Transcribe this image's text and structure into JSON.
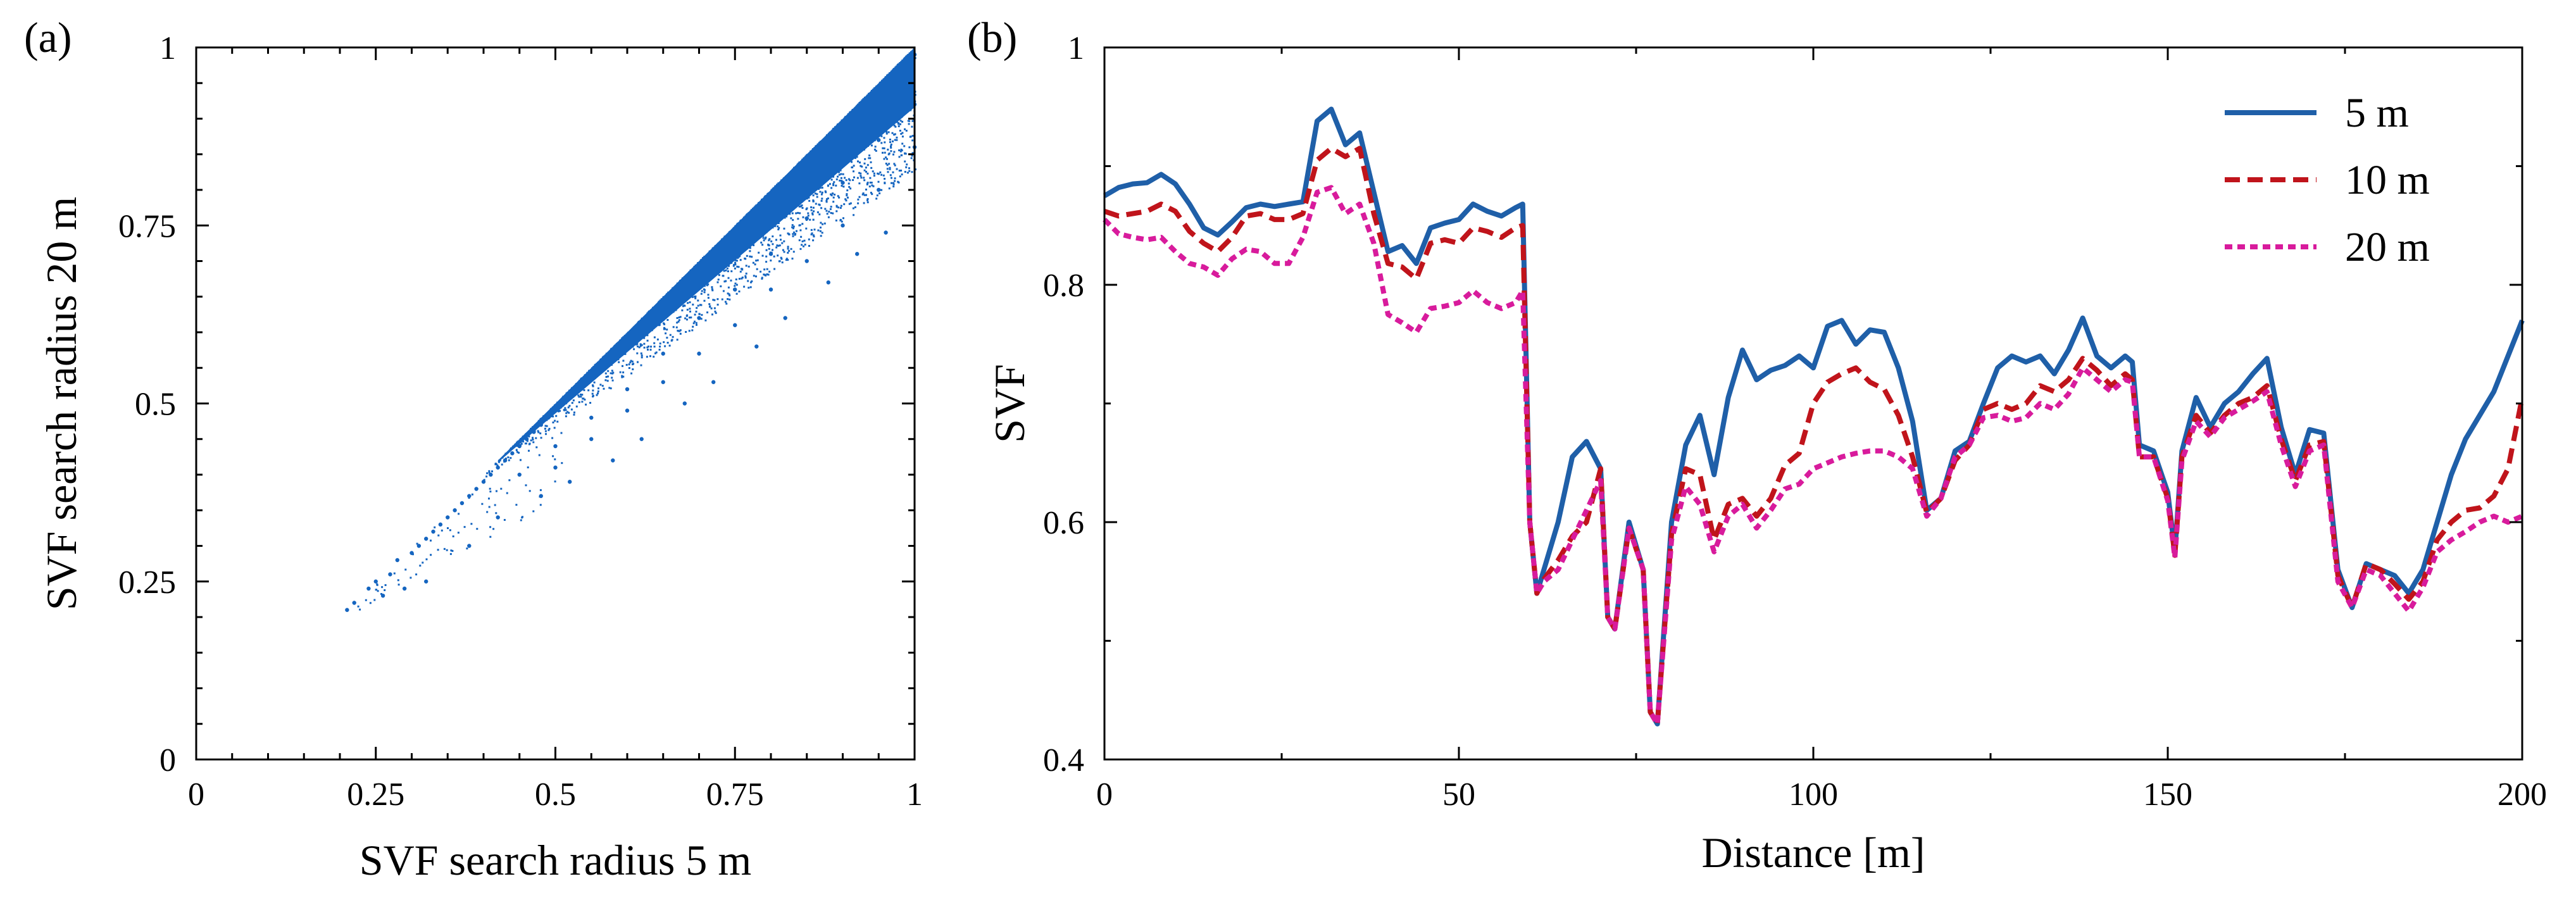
{
  "chart_data": [
    {
      "panel": "(a)",
      "type": "scatter",
      "xlabel": "SVF search radius 5 m",
      "ylabel": "SVF search radius 20 m",
      "xlim": [
        0,
        1
      ],
      "ylim": [
        0,
        1
      ],
      "xticks": [
        "0",
        "0.25",
        "0.5",
        "0.75",
        "1"
      ],
      "yticks": [
        "0",
        "0.25",
        "0.5",
        "0.75",
        "1"
      ],
      "color": "#1565c0",
      "points_description": "dense cloud of points below the 1:1 line, from about (0.21, 0.21) up to (1, 1)",
      "points": [
        {
          "x": 0.21,
          "y": 0.21
        },
        {
          "x": 0.22,
          "y": 0.22
        },
        {
          "x": 0.24,
          "y": 0.24
        },
        {
          "x": 0.25,
          "y": 0.25
        },
        {
          "x": 0.27,
          "y": 0.26
        },
        {
          "x": 0.28,
          "y": 0.28
        },
        {
          "x": 0.3,
          "y": 0.29
        },
        {
          "x": 0.31,
          "y": 0.3
        },
        {
          "x": 0.32,
          "y": 0.31
        },
        {
          "x": 0.33,
          "y": 0.32
        },
        {
          "x": 0.34,
          "y": 0.33
        },
        {
          "x": 0.35,
          "y": 0.34
        },
        {
          "x": 0.36,
          "y": 0.35
        },
        {
          "x": 0.37,
          "y": 0.36
        },
        {
          "x": 0.38,
          "y": 0.37
        },
        {
          "x": 0.39,
          "y": 0.38
        },
        {
          "x": 0.4,
          "y": 0.39
        },
        {
          "x": 0.41,
          "y": 0.4
        },
        {
          "x": 0.42,
          "y": 0.41
        },
        {
          "x": 0.43,
          "y": 0.42
        },
        {
          "x": 0.44,
          "y": 0.43
        },
        {
          "x": 0.45,
          "y": 0.44
        },
        {
          "x": 0.46,
          "y": 0.45
        },
        {
          "x": 0.47,
          "y": 0.46
        },
        {
          "x": 0.48,
          "y": 0.47
        },
        {
          "x": 0.49,
          "y": 0.48
        },
        {
          "x": 0.5,
          "y": 0.49
        },
        {
          "x": 0.51,
          "y": 0.5
        },
        {
          "x": 0.52,
          "y": 0.51
        },
        {
          "x": 0.53,
          "y": 0.52
        },
        {
          "x": 0.54,
          "y": 0.53
        },
        {
          "x": 0.55,
          "y": 0.54
        },
        {
          "x": 0.56,
          "y": 0.55
        },
        {
          "x": 0.57,
          "y": 0.56
        },
        {
          "x": 0.58,
          "y": 0.57
        },
        {
          "x": 0.59,
          "y": 0.58
        },
        {
          "x": 0.6,
          "y": 0.59
        },
        {
          "x": 0.61,
          "y": 0.6
        },
        {
          "x": 0.62,
          "y": 0.61
        },
        {
          "x": 0.63,
          "y": 0.62
        },
        {
          "x": 0.64,
          "y": 0.63
        },
        {
          "x": 0.65,
          "y": 0.64
        },
        {
          "x": 0.66,
          "y": 0.65
        },
        {
          "x": 0.67,
          "y": 0.66
        },
        {
          "x": 0.68,
          "y": 0.67
        },
        {
          "x": 0.69,
          "y": 0.68
        },
        {
          "x": 0.7,
          "y": 0.69
        },
        {
          "x": 0.71,
          "y": 0.7
        },
        {
          "x": 0.72,
          "y": 0.71
        },
        {
          "x": 0.73,
          "y": 0.72
        },
        {
          "x": 0.74,
          "y": 0.73
        },
        {
          "x": 0.75,
          "y": 0.74
        },
        {
          "x": 0.76,
          "y": 0.75
        },
        {
          "x": 0.77,
          "y": 0.76
        },
        {
          "x": 0.78,
          "y": 0.77
        },
        {
          "x": 0.79,
          "y": 0.78
        },
        {
          "x": 0.8,
          "y": 0.79
        },
        {
          "x": 0.81,
          "y": 0.8
        },
        {
          "x": 0.82,
          "y": 0.81
        },
        {
          "x": 0.83,
          "y": 0.82
        },
        {
          "x": 0.84,
          "y": 0.83
        },
        {
          "x": 0.85,
          "y": 0.84
        },
        {
          "x": 0.86,
          "y": 0.85
        },
        {
          "x": 0.87,
          "y": 0.86
        },
        {
          "x": 0.88,
          "y": 0.87
        },
        {
          "x": 0.89,
          "y": 0.88
        },
        {
          "x": 0.9,
          "y": 0.89
        },
        {
          "x": 0.91,
          "y": 0.9
        },
        {
          "x": 0.92,
          "y": 0.91
        },
        {
          "x": 0.93,
          "y": 0.92
        },
        {
          "x": 0.94,
          "y": 0.93
        },
        {
          "x": 0.95,
          "y": 0.94
        },
        {
          "x": 0.96,
          "y": 0.95
        },
        {
          "x": 0.97,
          "y": 0.96
        },
        {
          "x": 0.98,
          "y": 0.97
        },
        {
          "x": 0.99,
          "y": 0.98
        },
        {
          "x": 1.0,
          "y": 0.99
        },
        {
          "x": 0.45,
          "y": 0.4
        },
        {
          "x": 0.5,
          "y": 0.44
        },
        {
          "x": 0.55,
          "y": 0.48
        },
        {
          "x": 0.6,
          "y": 0.52
        },
        {
          "x": 0.65,
          "y": 0.57
        },
        {
          "x": 0.7,
          "y": 0.62
        },
        {
          "x": 0.75,
          "y": 0.66
        },
        {
          "x": 0.8,
          "y": 0.71
        },
        {
          "x": 0.85,
          "y": 0.76
        },
        {
          "x": 0.9,
          "y": 0.81
        },
        {
          "x": 0.95,
          "y": 0.87
        },
        {
          "x": 1.0,
          "y": 0.92
        },
        {
          "x": 0.5,
          "y": 0.41
        },
        {
          "x": 0.55,
          "y": 0.45
        },
        {
          "x": 0.6,
          "y": 0.49
        },
        {
          "x": 0.65,
          "y": 0.53
        },
        {
          "x": 0.7,
          "y": 0.57
        },
        {
          "x": 0.75,
          "y": 0.61
        },
        {
          "x": 0.8,
          "y": 0.66
        },
        {
          "x": 0.85,
          "y": 0.7
        },
        {
          "x": 0.9,
          "y": 0.75
        },
        {
          "x": 0.95,
          "y": 0.8
        },
        {
          "x": 1.0,
          "y": 0.86
        },
        {
          "x": 0.32,
          "y": 0.25
        },
        {
          "x": 0.38,
          "y": 0.3
        },
        {
          "x": 0.42,
          "y": 0.34
        },
        {
          "x": 0.48,
          "y": 0.37
        },
        {
          "x": 0.52,
          "y": 0.39
        },
        {
          "x": 0.58,
          "y": 0.42
        },
        {
          "x": 0.62,
          "y": 0.45
        },
        {
          "x": 0.68,
          "y": 0.5
        },
        {
          "x": 0.72,
          "y": 0.53
        },
        {
          "x": 0.78,
          "y": 0.58
        },
        {
          "x": 0.82,
          "y": 0.62
        },
        {
          "x": 0.88,
          "y": 0.67
        },
        {
          "x": 0.92,
          "y": 0.71
        },
        {
          "x": 0.96,
          "y": 0.74
        },
        {
          "x": 0.29,
          "y": 0.24
        },
        {
          "x": 0.26,
          "y": 0.23
        }
      ]
    },
    {
      "panel": "(b)",
      "type": "line",
      "xlabel": "Distance [m]",
      "ylabel": "SVF",
      "xlim": [
        0,
        200
      ],
      "ylim": [
        0.4,
        1.0
      ],
      "xticks": [
        "0",
        "50",
        "100",
        "150",
        "200"
      ],
      "yticks": [
        "0.4",
        "0.6",
        "0.8",
        "1"
      ],
      "legend_position": "top-right",
      "x": [
        0,
        2,
        4,
        6,
        8,
        10,
        12,
        14,
        16,
        18,
        20,
        22,
        24,
        26,
        28,
        30,
        32,
        34,
        36,
        38,
        40,
        42,
        44,
        46,
        48,
        50,
        52,
        54,
        56,
        58,
        59,
        60,
        61,
        62,
        64,
        66,
        68,
        70,
        71,
        72,
        74,
        76,
        77,
        78,
        80,
        82,
        84,
        86,
        88,
        90,
        92,
        94,
        96,
        98,
        100,
        102,
        104,
        106,
        108,
        110,
        112,
        114,
        116,
        118,
        120,
        122,
        124,
        126,
        128,
        130,
        132,
        134,
        136,
        138,
        140,
        142,
        144,
        145,
        146,
        148,
        150,
        151,
        152,
        154,
        156,
        158,
        160,
        162,
        164,
        166,
        168,
        170,
        172,
        174,
        176,
        178,
        180,
        182,
        184,
        186,
        188,
        190,
        192,
        194,
        196,
        198,
        200
      ],
      "series": [
        {
          "name": "5 m",
          "color": "#1f5fa8",
          "dash": "solid",
          "values": [
            0.875,
            0.882,
            0.885,
            0.886,
            0.893,
            0.885,
            0.868,
            0.848,
            0.842,
            0.853,
            0.865,
            0.868,
            0.866,
            0.868,
            0.87,
            0.938,
            0.948,
            0.918,
            0.928,
            0.878,
            0.828,
            0.833,
            0.818,
            0.848,
            0.852,
            0.855,
            0.868,
            0.862,
            0.858,
            0.865,
            0.868,
            0.6,
            0.54,
            0.56,
            0.6,
            0.655,
            0.668,
            0.645,
            0.52,
            0.51,
            0.6,
            0.56,
            0.44,
            0.43,
            0.6,
            0.665,
            0.69,
            0.64,
            0.705,
            0.745,
            0.72,
            0.728,
            0.732,
            0.74,
            0.73,
            0.765,
            0.77,
            0.75,
            0.762,
            0.76,
            0.73,
            0.685,
            0.61,
            0.62,
            0.66,
            0.668,
            0.7,
            0.73,
            0.74,
            0.735,
            0.74,
            0.725,
            0.745,
            0.772,
            0.74,
            0.73,
            0.74,
            0.735,
            0.665,
            0.66,
            0.625,
            0.575,
            0.66,
            0.705,
            0.68,
            0.7,
            0.71,
            0.725,
            0.738,
            0.68,
            0.64,
            0.678,
            0.675,
            0.56,
            0.528,
            0.565,
            0.56,
            0.555,
            0.54,
            0.56,
            0.6,
            0.64,
            0.67,
            0.69,
            0.71,
            0.74,
            0.77
          ]
        },
        {
          "name": "10 m",
          "color": "#c0141b",
          "dash": "long",
          "values": [
            0.862,
            0.858,
            0.86,
            0.862,
            0.868,
            0.862,
            0.845,
            0.835,
            0.828,
            0.84,
            0.858,
            0.86,
            0.855,
            0.855,
            0.86,
            0.905,
            0.915,
            0.908,
            0.915,
            0.86,
            0.818,
            0.815,
            0.805,
            0.835,
            0.838,
            0.835,
            0.848,
            0.845,
            0.84,
            0.848,
            0.85,
            0.6,
            0.54,
            0.552,
            0.568,
            0.588,
            0.6,
            0.645,
            0.52,
            0.51,
            0.595,
            0.56,
            0.44,
            0.43,
            0.59,
            0.645,
            0.64,
            0.585,
            0.615,
            0.62,
            0.605,
            0.62,
            0.648,
            0.658,
            0.7,
            0.718,
            0.725,
            0.73,
            0.718,
            0.712,
            0.69,
            0.655,
            0.608,
            0.62,
            0.652,
            0.665,
            0.695,
            0.7,
            0.695,
            0.7,
            0.715,
            0.71,
            0.72,
            0.738,
            0.728,
            0.715,
            0.725,
            0.72,
            0.655,
            0.655,
            0.62,
            0.572,
            0.655,
            0.69,
            0.675,
            0.69,
            0.7,
            0.705,
            0.715,
            0.67,
            0.635,
            0.665,
            0.668,
            0.555,
            0.528,
            0.565,
            0.56,
            0.548,
            0.535,
            0.55,
            0.585,
            0.6,
            0.61,
            0.612,
            0.622,
            0.645,
            0.705
          ]
        },
        {
          "name": "20 m",
          "color": "#d81b9c",
          "dash": "short",
          "values": [
            0.855,
            0.843,
            0.84,
            0.838,
            0.84,
            0.828,
            0.818,
            0.815,
            0.808,
            0.822,
            0.83,
            0.828,
            0.818,
            0.818,
            0.84,
            0.878,
            0.882,
            0.86,
            0.868,
            0.835,
            0.775,
            0.768,
            0.76,
            0.78,
            0.782,
            0.785,
            0.795,
            0.785,
            0.78,
            0.785,
            0.795,
            0.6,
            0.54,
            0.55,
            0.56,
            0.585,
            0.61,
            0.635,
            0.52,
            0.51,
            0.595,
            0.56,
            0.44,
            0.43,
            0.585,
            0.63,
            0.615,
            0.575,
            0.605,
            0.615,
            0.595,
            0.61,
            0.628,
            0.632,
            0.645,
            0.65,
            0.655,
            0.658,
            0.66,
            0.66,
            0.655,
            0.645,
            0.605,
            0.62,
            0.655,
            0.665,
            0.688,
            0.69,
            0.685,
            0.688,
            0.7,
            0.695,
            0.708,
            0.73,
            0.72,
            0.71,
            0.72,
            0.718,
            0.655,
            0.655,
            0.618,
            0.57,
            0.652,
            0.685,
            0.672,
            0.688,
            0.695,
            0.702,
            0.71,
            0.665,
            0.63,
            0.66,
            0.665,
            0.55,
            0.528,
            0.56,
            0.555,
            0.54,
            0.525,
            0.545,
            0.575,
            0.585,
            0.592,
            0.6,
            0.605,
            0.6,
            0.605
          ]
        }
      ]
    }
  ]
}
